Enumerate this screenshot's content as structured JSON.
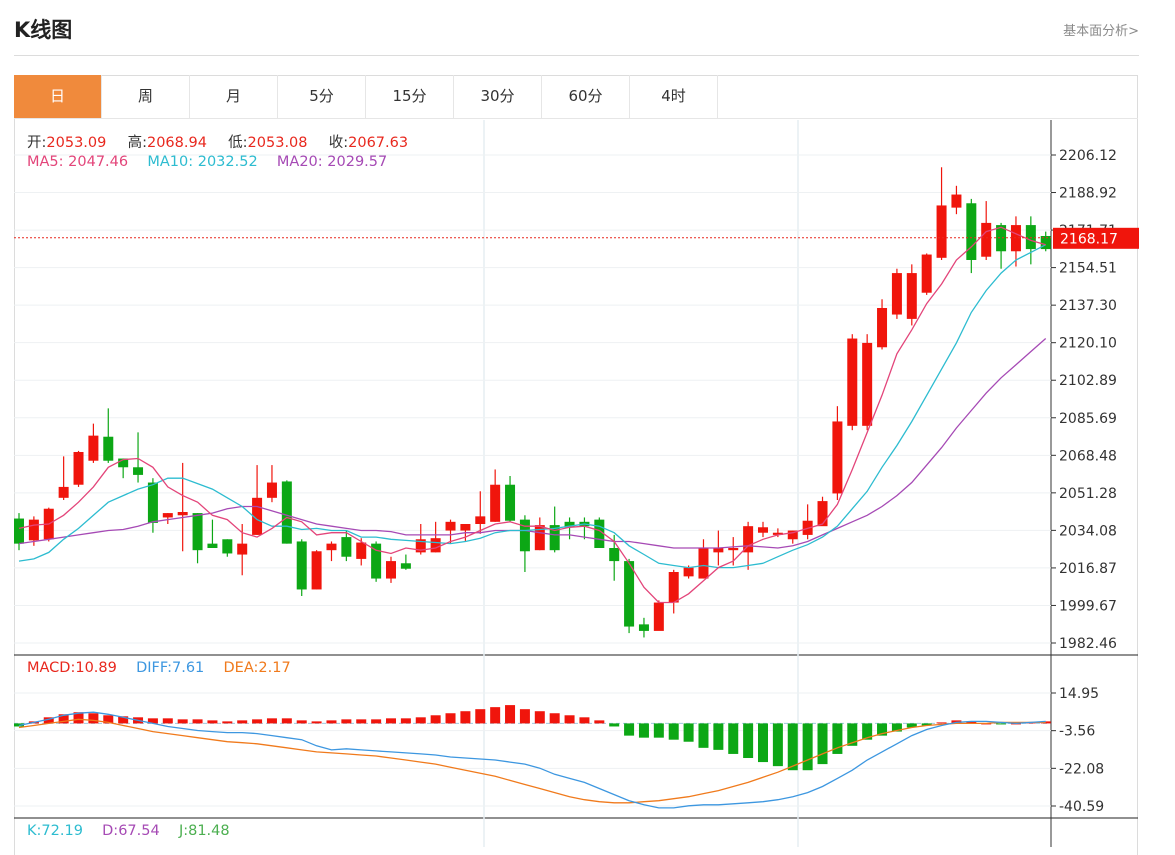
{
  "header": {
    "title": "K线图",
    "more_link": "基本面分析>"
  },
  "tabs": [
    "日",
    "周",
    "月",
    "5分",
    "15分",
    "30分",
    "60分",
    "4时"
  ],
  "active_tab": 0,
  "ohlc_info": [
    {
      "label": "开:",
      "value": "2053.09"
    },
    {
      "label": "高:",
      "value": "2068.94"
    },
    {
      "label": "低:",
      "value": "2053.08"
    },
    {
      "label": "收:",
      "value": "2067.63"
    }
  ],
  "ma_info": [
    {
      "label": "MA5:",
      "value": "2047.46",
      "color": "#e3457a"
    },
    {
      "label": "MA10:",
      "value": "2032.52",
      "color": "#2dbcd0"
    },
    {
      "label": "MA20:",
      "value": "2029.57",
      "color": "#a64ab5"
    }
  ],
  "macd_info": [
    {
      "label": "MACD:",
      "value": "10.89",
      "color": "#e8281e"
    },
    {
      "label": "DIFF:",
      "value": "7.61",
      "color": "#3d97e0"
    },
    {
      "label": "DEA:",
      "value": "2.17",
      "color": "#f07a1c"
    }
  ],
  "kdj_info": [
    {
      "label": "K:",
      "value": "72.19",
      "color": "#2dbcd0"
    },
    {
      "label": "D:",
      "value": "67.54",
      "color": "#a64ab5"
    },
    {
      "label": "J:",
      "value": "81.48",
      "color": "#4caf50"
    }
  ],
  "colors": {
    "up": "#f0150c",
    "down": "#0ca715",
    "accent": "#f08a3c"
  },
  "chart_data": {
    "type": "candlestick",
    "current_price": "2168.17",
    "price_axis": {
      "ticks": [
        "2206.12",
        "2188.92",
        "2171.71",
        "2154.51",
        "2137.30",
        "2120.10",
        "2102.89",
        "2085.69",
        "2068.48",
        "2051.28",
        "2034.08",
        "2016.87",
        "1999.67",
        "1982.46"
      ],
      "range": [
        1982.46,
        2206.12
      ]
    },
    "macd_axis": {
      "ticks": [
        "14.95",
        "-3.56",
        "-22.08",
        "-40.59"
      ],
      "range": [
        -40.59,
        14.95
      ]
    },
    "candles": [
      [
        2039.5,
        2028.0,
        2042.0,
        2025.0
      ],
      [
        2029.5,
        2039.0,
        2040.5,
        2027.0
      ],
      [
        2030.0,
        2044.0,
        2044.5,
        2029.0
      ],
      [
        2049.0,
        2054.0,
        2068.0,
        2048.0
      ],
      [
        2055.0,
        2070.0,
        2070.5,
        2054.0
      ],
      [
        2066.0,
        2077.5,
        2083.0,
        2065.0
      ],
      [
        2077.0,
        2066.0,
        2090.0,
        2065.0
      ],
      [
        2067.0,
        2063.0,
        2067.0,
        2058.0
      ],
      [
        2063.0,
        2059.5,
        2079.0,
        2056.0
      ],
      [
        2056.0,
        2037.5,
        2058.0,
        2033.0
      ],
      [
        2040.0,
        2042.0,
        2042.0,
        2037.0
      ],
      [
        2041.0,
        2042.5,
        2065.0,
        2024.5
      ],
      [
        2042.0,
        2025.0,
        2042.0,
        2019.0
      ],
      [
        2028.0,
        2026.0,
        2039.0,
        2026.0
      ],
      [
        2030.0,
        2023.5,
        2030.0,
        2022.0
      ],
      [
        2023.0,
        2028.0,
        2037.0,
        2013.5
      ],
      [
        2032.0,
        2049.0,
        2064.0,
        2032.0
      ],
      [
        2049.0,
        2056.0,
        2064.0,
        2047.0
      ],
      [
        2056.5,
        2028.0,
        2057.0,
        2028.0
      ],
      [
        2029.0,
        2007.0,
        2030.0,
        2004.0
      ],
      [
        2007.0,
        2024.5,
        2025.0,
        2007.0
      ],
      [
        2025.0,
        2028.0,
        2029.0,
        2020.0
      ],
      [
        2031.0,
        2022.0,
        2034.0,
        2020.0
      ],
      [
        2021.0,
        2028.5,
        2030.5,
        2018.0
      ],
      [
        2028.0,
        2012.0,
        2029.0,
        2010.5
      ],
      [
        2012.0,
        2020.0,
        2022.0,
        2010.0
      ],
      [
        2019.0,
        2016.5,
        2023.0,
        2016.0
      ],
      [
        2024.0,
        2030.0,
        2037.0,
        2023.0
      ],
      [
        2024.0,
        2030.5,
        2038.0,
        2024.0
      ],
      [
        2034.0,
        2038.0,
        2039.0,
        2028.0
      ],
      [
        2034.0,
        2037.0,
        2037.0,
        2029.0
      ],
      [
        2037.0,
        2040.5,
        2052.0,
        2032.5
      ],
      [
        2038.0,
        2055.0,
        2062.0,
        2038.0
      ],
      [
        2055.0,
        2038.5,
        2059.0,
        2038.0
      ],
      [
        2039.0,
        2024.5,
        2041.0,
        2015.0
      ],
      [
        2025.0,
        2036.5,
        2040.0,
        2025.0
      ],
      [
        2036.5,
        2025.0,
        2045.0,
        2024.0
      ],
      [
        2038.0,
        2035.5,
        2040.0,
        2030.0
      ],
      [
        2038.0,
        2036.0,
        2040.0,
        2030.0
      ],
      [
        2039.0,
        2026.0,
        2040.0,
        2026.0
      ],
      [
        2026.0,
        2020.0,
        2032.0,
        2011.0
      ],
      [
        2020.0,
        1990.0,
        2021.0,
        1987.0
      ],
      [
        1991.0,
        1988.0,
        1994.0,
        1985.0
      ],
      [
        1988.0,
        2001.0,
        2002.0,
        1989.0
      ],
      [
        2001.0,
        2015.0,
        2016.0,
        1996.0
      ],
      [
        2013.0,
        2017.0,
        2018.0,
        2012.0
      ],
      [
        2012.0,
        2026.0,
        2030.0,
        2012.0
      ],
      [
        2024.0,
        2026.0,
        2034.0,
        2018.0
      ],
      [
        2025.0,
        2026.0,
        2031.0,
        2018.0
      ],
      [
        2024.0,
        2036.0,
        2038.0,
        2016.0
      ],
      [
        2033.0,
        2035.5,
        2038.0,
        2031.0
      ],
      [
        2032.0,
        2033.0,
        2035.0,
        2031.0
      ],
      [
        2030.0,
        2034.0,
        2034.0,
        2028.0
      ],
      [
        2032.0,
        2038.5,
        2046.0,
        2030.0
      ],
      [
        2036.0,
        2047.5,
        2049.5,
        2038.0
      ],
      [
        2051.0,
        2084.0,
        2091.0,
        2048.0
      ],
      [
        2082.0,
        2122.0,
        2124.0,
        2080.0
      ],
      [
        2082.0,
        2120.0,
        2124.0,
        2080.0
      ],
      [
        2118.0,
        2136.0,
        2140.0,
        2117.0
      ],
      [
        2133.0,
        2152.0,
        2154.0,
        2131.0
      ],
      [
        2131.0,
        2152.0,
        2156.0,
        2128.0
      ],
      [
        2143.0,
        2160.5,
        2161.0,
        2142.0
      ],
      [
        2159.0,
        2183.0,
        2200.5,
        2158.0
      ],
      [
        2182.0,
        2188.0,
        2192.0,
        2179.0
      ],
      [
        2184.0,
        2158.0,
        2186.0,
        2152.0
      ],
      [
        2159.5,
        2175.0,
        2185.0,
        2158.0
      ],
      [
        2174.0,
        2162.0,
        2175.0,
        2154.0
      ],
      [
        2162.0,
        2174.0,
        2178.0,
        2155.0
      ],
      [
        2174.0,
        2163.0,
        2178.0,
        2156.0
      ],
      [
        2169.0,
        2163.0,
        2171.0,
        2162.0
      ]
    ],
    "ma5": [
      2035,
      2036.5,
      2037,
      2041,
      2047,
      2054,
      2063,
      2066.5,
      2067,
      2063,
      2054,
      2050,
      2047,
      2041,
      2039,
      2033,
      2031,
      2035,
      2040,
      2038,
      2032,
      2033,
      2033,
      2029,
      2025,
      2023.5,
      2026,
      2025,
      2026,
      2029,
      2031,
      2034,
      2037,
      2038,
      2036,
      2036,
      2034,
      2035.5,
      2036,
      2034,
      2029,
      2019,
      2008,
      2001,
      2001,
      2005,
      2011,
      2017,
      2020,
      2027,
      2030,
      2032,
      2033,
      2035,
      2037,
      2046,
      2062,
      2079,
      2096,
      2115,
      2126,
      2138,
      2147,
      2158,
      2164,
      2171,
      2173,
      2170,
      2167,
      2165
    ],
    "ma10": [
      2020,
      2021,
      2024,
      2030,
      2035,
      2041,
      2047,
      2050,
      2053,
      2055,
      2058,
      2058,
      2055.5,
      2053,
      2049,
      2045,
      2039,
      2036,
      2036,
      2034.5,
      2035,
      2034,
      2034,
      2031,
      2031,
      2030,
      2029.5,
      2029,
      2028.5,
      2028,
      2029,
      2030.5,
      2033,
      2034,
      2034,
      2034.5,
      2035,
      2036,
      2037,
      2036,
      2033,
      2027,
      2023,
      2019,
      2018,
      2017,
      2018,
      2017,
      2017,
      2018,
      2019,
      2022,
      2025,
      2027.5,
      2031,
      2036,
      2044,
      2052,
      2063,
      2073,
      2084,
      2096,
      2108,
      2120,
      2134,
      2144,
      2152,
      2158,
      2161.5,
      2165
    ],
    "ma20": [
      2028,
      2029,
      2030,
      2031,
      2032,
      2033,
      2034,
      2034.5,
      2036,
      2038,
      2039,
      2040,
      2041,
      2042,
      2044,
      2045,
      2045,
      2043,
      2041,
      2039,
      2037,
      2036,
      2035,
      2034,
      2034,
      2033.5,
      2032,
      2032,
      2032,
      2032,
      2033,
      2033,
      2034,
      2034,
      2034,
      2033,
      2032,
      2032,
      2031,
      2030,
      2029,
      2029,
      2028,
      2027,
      2026,
      2026,
      2026,
      2026,
      2026.5,
      2027,
      2026.5,
      2026,
      2027,
      2029,
      2032,
      2035,
      2038,
      2041,
      2045,
      2050,
      2056,
      2064,
      2072,
      2081,
      2089,
      2097,
      2104,
      2110,
      2116,
      2122
    ],
    "macd_bars": [
      -1.5,
      1,
      3,
      4.5,
      5.5,
      5,
      4,
      3.5,
      3,
      2.5,
      2.5,
      2,
      2,
      1.5,
      1,
      1.5,
      2,
      2.5,
      2.5,
      1.5,
      1,
      1.5,
      2,
      2,
      2,
      2.5,
      2.5,
      3,
      4,
      5,
      6,
      7,
      8,
      9,
      7,
      6,
      5,
      4,
      3,
      1.5,
      -1.5,
      -6,
      -7,
      -7,
      -8,
      -9,
      -12,
      -13,
      -15,
      -17,
      -19,
      -21,
      -23,
      -23,
      -20,
      -15,
      -11,
      -8,
      -6,
      -4,
      -2,
      -1,
      0.5,
      1.5,
      1,
      0,
      -0.5,
      0,
      0.5,
      1
    ],
    "diff": [
      -1,
      0.5,
      2,
      4,
      5,
      5.5,
      4.5,
      3,
      1.5,
      0,
      -1.5,
      -2.5,
      -3.5,
      -4,
      -4.5,
      -4.5,
      -5,
      -6,
      -7,
      -8,
      -11,
      -13,
      -12.5,
      -13,
      -13.5,
      -14,
      -14.5,
      -15,
      -15.5,
      -16.5,
      -17,
      -17.5,
      -18,
      -19,
      -20,
      -22,
      -25,
      -27,
      -29,
      -32,
      -35,
      -38,
      -40,
      -41.5,
      -41.5,
      -40.5,
      -40,
      -40,
      -39.5,
      -39,
      -38.5,
      -37.5,
      -36,
      -34,
      -31,
      -27,
      -23,
      -18,
      -14,
      -10,
      -6,
      -3,
      -1,
      0.5,
      1,
      1,
      0.5,
      0,
      0.5,
      1
    ],
    "dea": [
      -2,
      -1,
      0,
      1,
      2,
      1.5,
      0.5,
      -1,
      -2.5,
      -4,
      -5,
      -6,
      -7,
      -8,
      -9,
      -9.5,
      -10,
      -11,
      -12,
      -13,
      -14,
      -14.5,
      -15,
      -15.5,
      -16,
      -17,
      -18,
      -19,
      -20,
      -21.5,
      -23,
      -24.5,
      -26,
      -28,
      -30,
      -32,
      -34,
      -36,
      -37.5,
      -38.5,
      -39,
      -39,
      -38.5,
      -38,
      -37,
      -36,
      -34.5,
      -33,
      -31,
      -29,
      -26.5,
      -24,
      -21,
      -18,
      -15,
      -12,
      -9.5,
      -7,
      -5,
      -3.5,
      -2,
      -1,
      -0.5,
      0,
      0,
      0,
      0.5,
      0.5,
      0.5,
      0.5
    ]
  }
}
